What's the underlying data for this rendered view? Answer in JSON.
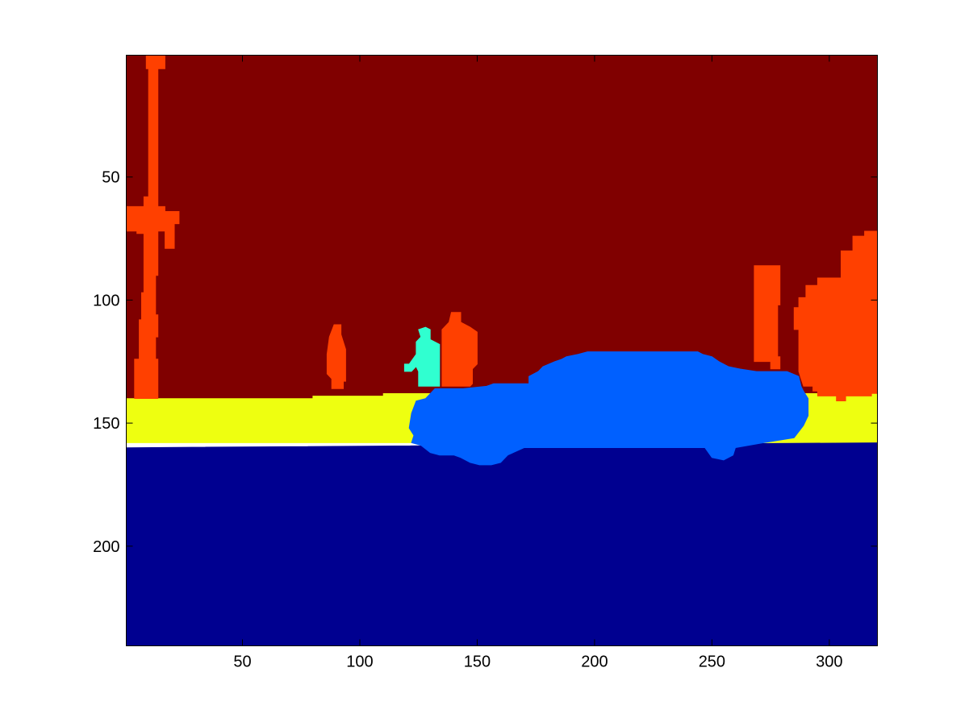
{
  "chart_data": {
    "type": "heatmap",
    "description_type": "segmentation label image",
    "xlim": [
      0.5,
      320.5
    ],
    "ylim": [
      0.5,
      240.5
    ],
    "y_reversed": true,
    "x_ticks": [
      50,
      100,
      150,
      200,
      250,
      300
    ],
    "y_ticks": [
      50,
      100,
      150,
      200
    ],
    "colors": {
      "sky": "#800000",
      "pole_tree": "#ff4000",
      "sidewalk": "#eeff10",
      "road": "#000090",
      "car": "#0060ff",
      "pedestrian": "#30ffd0"
    },
    "regions": [
      {
        "label": "sky",
        "polygon": [
          [
            0.5,
            0.5
          ],
          [
            320.5,
            0.5
          ],
          [
            320.5,
            141
          ],
          [
            0.5,
            141
          ]
        ]
      },
      {
        "label": "sidewalk",
        "polygon": [
          [
            0.5,
            140
          ],
          [
            80,
            140
          ],
          [
            80,
            139
          ],
          [
            110,
            139
          ],
          [
            110,
            138
          ],
          [
            320.5,
            138
          ],
          [
            320.5,
            158
          ],
          [
            0.5,
            158
          ]
        ]
      },
      {
        "label": "road",
        "polygon": [
          [
            0.5,
            160
          ],
          [
            320.5,
            158
          ],
          [
            320.5,
            240.5
          ],
          [
            0.5,
            240.5
          ]
        ]
      },
      {
        "label": "pole_tree",
        "polygon": [
          [
            9,
            0.5
          ],
          [
            17,
            0.5
          ],
          [
            17,
            6
          ],
          [
            14,
            6
          ],
          [
            14,
            62
          ],
          [
            17,
            62
          ],
          [
            17,
            64
          ],
          [
            23,
            64
          ],
          [
            23,
            69
          ],
          [
            21,
            69
          ],
          [
            21,
            79
          ],
          [
            17,
            79
          ],
          [
            17,
            72
          ],
          [
            14,
            72
          ],
          [
            14,
            90
          ],
          [
            13,
            90
          ],
          [
            13,
            106
          ],
          [
            14,
            106
          ],
          [
            14,
            115
          ],
          [
            13,
            115
          ],
          [
            13,
            124
          ],
          [
            14,
            124
          ],
          [
            14,
            140
          ],
          [
            4,
            140
          ],
          [
            4,
            124
          ],
          [
            6,
            124
          ],
          [
            6,
            108
          ],
          [
            7,
            108
          ],
          [
            7,
            97
          ],
          [
            8,
            97
          ],
          [
            8,
            73
          ],
          [
            5,
            73
          ],
          [
            5,
            72
          ],
          [
            0.5,
            72
          ],
          [
            0.5,
            62
          ],
          [
            8,
            62
          ],
          [
            8,
            58
          ],
          [
            10,
            58
          ],
          [
            10,
            6
          ],
          [
            9,
            6
          ]
        ]
      },
      {
        "label": "pole_tree",
        "polygon": [
          [
            87,
            115
          ],
          [
            89,
            110
          ],
          [
            92,
            110
          ],
          [
            92,
            114
          ],
          [
            94,
            120
          ],
          [
            94,
            133
          ],
          [
            93,
            133
          ],
          [
            93,
            136
          ],
          [
            88,
            136
          ],
          [
            88,
            132
          ],
          [
            86,
            130
          ],
          [
            86,
            122
          ]
        ]
      },
      {
        "label": "pole_tree",
        "polygon": [
          [
            135,
            112
          ],
          [
            138,
            109
          ],
          [
            139,
            105
          ],
          [
            143,
            105
          ],
          [
            143,
            109
          ],
          [
            147,
            111
          ],
          [
            150,
            113
          ],
          [
            150,
            126
          ],
          [
            148,
            128
          ],
          [
            148,
            134
          ],
          [
            147,
            135
          ],
          [
            135,
            135
          ]
        ]
      },
      {
        "label": "pedestrian",
        "polygon": [
          [
            125,
            112
          ],
          [
            128,
            111
          ],
          [
            130,
            112
          ],
          [
            130,
            116
          ],
          [
            134,
            118
          ],
          [
            134,
            135
          ],
          [
            125,
            135
          ],
          [
            125,
            129
          ],
          [
            124,
            127
          ],
          [
            122,
            129
          ],
          [
            119,
            129
          ],
          [
            119,
            126
          ],
          [
            121,
            126
          ],
          [
            124,
            122
          ],
          [
            124,
            117
          ],
          [
            126,
            115
          ]
        ]
      },
      {
        "label": "pole_tree",
        "polygon": [
          [
            268,
            86
          ],
          [
            279,
            86
          ],
          [
            279,
            102
          ],
          [
            278,
            102
          ],
          [
            278,
            123
          ],
          [
            279,
            123
          ],
          [
            279,
            128
          ],
          [
            275,
            128
          ],
          [
            275,
            125
          ],
          [
            268,
            125
          ],
          [
            268,
            103
          ],
          [
            268,
            86
          ]
        ]
      },
      {
        "label": "pole_tree",
        "polygon": [
          [
            285,
            107
          ],
          [
            285,
            103
          ],
          [
            287,
            103
          ],
          [
            287,
            99
          ],
          [
            290,
            99
          ],
          [
            290,
            94
          ],
          [
            295,
            94
          ],
          [
            295,
            91
          ],
          [
            305,
            91
          ],
          [
            305,
            80
          ],
          [
            310,
            80
          ],
          [
            310,
            74
          ],
          [
            315,
            74
          ],
          [
            315,
            72
          ],
          [
            320.5,
            72
          ],
          [
            320.5,
            138
          ],
          [
            318,
            138
          ],
          [
            318,
            139
          ],
          [
            307,
            139
          ],
          [
            307,
            141
          ],
          [
            303,
            141
          ],
          [
            303,
            139
          ],
          [
            295,
            139
          ],
          [
            295,
            137
          ],
          [
            293,
            137
          ],
          [
            293,
            135
          ],
          [
            289,
            135
          ],
          [
            287,
            129
          ],
          [
            287,
            112
          ],
          [
            285,
            112
          ]
        ]
      },
      {
        "label": "car",
        "polygon": [
          [
            122,
            146
          ],
          [
            124,
            141
          ],
          [
            128,
            140
          ],
          [
            132,
            136
          ],
          [
            144,
            136
          ],
          [
            154,
            135
          ],
          [
            157,
            134
          ],
          [
            172,
            134
          ],
          [
            172,
            131
          ],
          [
            176,
            129
          ],
          [
            178,
            127
          ],
          [
            183,
            125
          ],
          [
            186,
            124
          ],
          [
            188,
            123
          ],
          [
            193,
            122
          ],
          [
            197,
            121
          ],
          [
            244,
            121
          ],
          [
            246,
            122
          ],
          [
            250,
            123
          ],
          [
            253,
            125
          ],
          [
            257,
            127
          ],
          [
            262,
            128
          ],
          [
            269,
            129
          ],
          [
            282,
            129
          ],
          [
            287,
            131
          ],
          [
            288,
            135
          ],
          [
            289,
            137
          ],
          [
            291,
            140
          ],
          [
            291,
            147
          ],
          [
            289,
            151
          ],
          [
            285,
            156
          ],
          [
            272,
            158
          ],
          [
            260,
            160
          ],
          [
            259,
            163
          ],
          [
            255,
            165
          ],
          [
            250,
            164
          ],
          [
            247,
            160
          ],
          [
            245,
            160
          ],
          [
            225,
            160
          ],
          [
            210,
            160
          ],
          [
            190,
            160
          ],
          [
            170,
            160
          ],
          [
            163,
            163
          ],
          [
            160,
            166
          ],
          [
            156,
            167
          ],
          [
            151,
            167
          ],
          [
            147,
            166
          ],
          [
            143,
            164
          ],
          [
            140,
            163
          ],
          [
            134,
            163
          ],
          [
            130,
            162
          ],
          [
            126,
            159
          ],
          [
            122,
            158
          ],
          [
            123,
            155
          ],
          [
            121,
            152
          ]
        ]
      }
    ]
  }
}
